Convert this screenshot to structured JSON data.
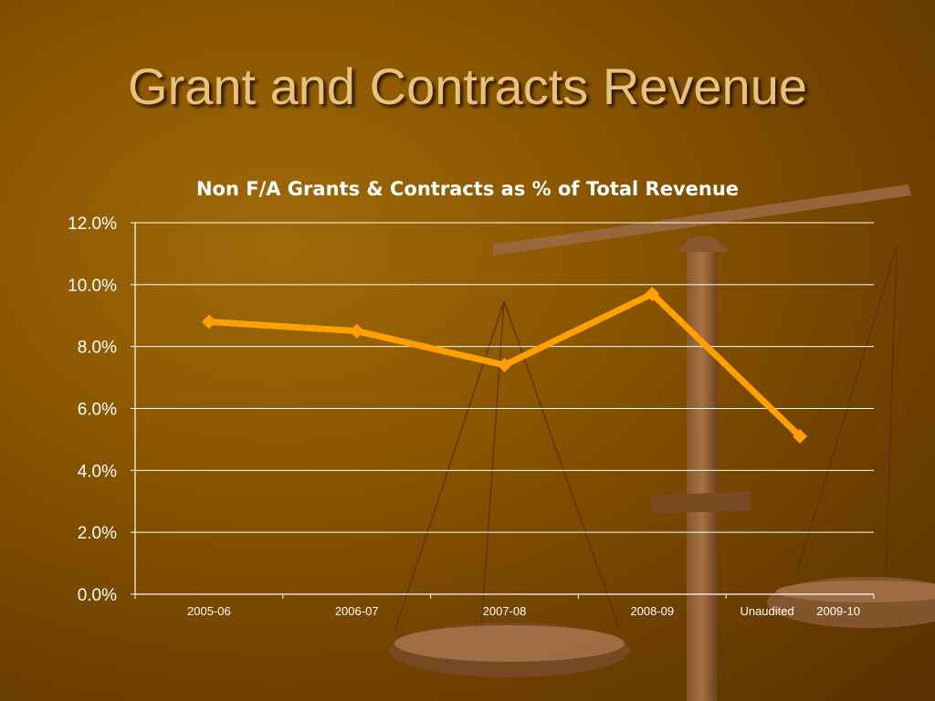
{
  "slide": {
    "title": "Grant and Contracts Revenue"
  },
  "colors": {
    "line": "#ffa000",
    "grid": "#ffffff",
    "text": "#ffffff",
    "title": "#e8c27a"
  },
  "chart_data": {
    "type": "line",
    "title": "Non F/A Grants & Contracts as % of Total Revenue",
    "categories": [
      "2005-06",
      "2006-07",
      "2007-08",
      "2008-09",
      "Unaudited 2009-10"
    ],
    "category_labels": [
      "2005-06",
      "2006-07",
      "2007-08",
      "2008-09",
      "Unaudited",
      "2009-10"
    ],
    "series": [
      {
        "values": [
          8.8,
          8.5,
          7.4,
          9.7,
          5.1
        ]
      }
    ],
    "yticks": [
      "12.0%",
      "10.0%",
      "8.0%",
      "6.0%",
      "4.0%",
      "2.0%",
      "0.0%"
    ],
    "ylim": [
      0,
      12
    ],
    "grid": true,
    "legend": "none",
    "marker": "diamond"
  }
}
